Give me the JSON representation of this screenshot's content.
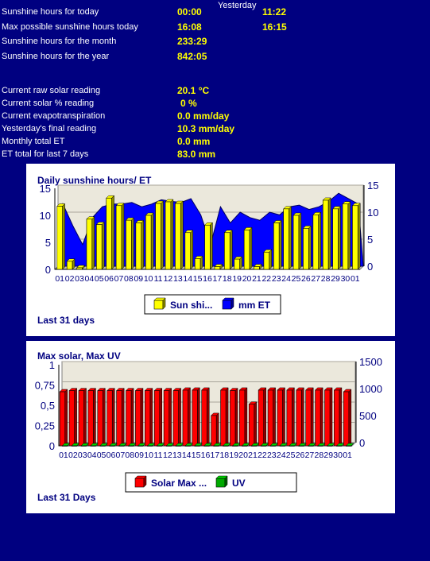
{
  "summary": {
    "yesterday_header": "Yesterday",
    "rows": [
      {
        "label": "Sunshine hours for today",
        "today": "00:00",
        "yesterday": "11:22"
      },
      {
        "label": "Max possible sunshine hours today",
        "today": "16:08",
        "yesterday": "16:15"
      },
      {
        "label": "Sunshine hours for the month",
        "today": "233:29"
      },
      {
        "label": "Sunshine hours for the year",
        "today": "842:05"
      }
    ]
  },
  "solar": {
    "rows": [
      {
        "label": "Current raw solar reading",
        "value": "20.1 °C"
      },
      {
        "label": "Current solar % reading",
        "value": "0 %"
      },
      {
        "label": "Current evapotranspiration",
        "value": "0.0 mm/day"
      },
      {
        "label": "Yesterday's final reading",
        "value": "10.3 mm/day"
      },
      {
        "label": "Monthly total ET",
        "value": "0.0 mm"
      },
      {
        "label": "ET total for last 7 days",
        "value": "83.0 mm"
      }
    ]
  },
  "chart_data": [
    {
      "type": "bar",
      "title": "Daily sunshine hours/ ET",
      "footer": "Last 31 days",
      "categories": [
        "01",
        "02",
        "03",
        "04",
        "05",
        "06",
        "07",
        "08",
        "09",
        "10",
        "11",
        "12",
        "13",
        "14",
        "15",
        "16",
        "17",
        "18",
        "19",
        "20",
        "21",
        "22",
        "23",
        "24",
        "25",
        "26",
        "27",
        "28",
        "29",
        "30",
        "01"
      ],
      "ylim_left": [
        0,
        15
      ],
      "ylim_right": [
        0,
        15
      ],
      "yticks_left": [
        "0",
        "5",
        "10",
        "15"
      ],
      "yticks_right": [
        "0",
        "5",
        "10",
        "15"
      ],
      "legend": [
        "Sun shi...",
        "mm ET"
      ],
      "series": [
        {
          "name": "Sun shi...",
          "type": "bar",
          "axis": "left",
          "color": "#ffff00",
          "values": [
            11.7,
            1.5,
            0.3,
            9.3,
            8.3,
            13.2,
            11.8,
            9.1,
            8.6,
            10.0,
            12.2,
            12.5,
            12.2,
            6.8,
            2.0,
            8.2,
            0.5,
            6.8,
            1.9,
            7.3,
            0.5,
            3.2,
            8.6,
            11.2,
            10.0,
            7.6,
            10.1,
            12.8,
            11.2,
            12.1,
            11.8
          ]
        },
        {
          "name": "mm ET",
          "type": "area",
          "axis": "right",
          "color": "#0000ff",
          "values": [
            11.5,
            7.5,
            4.0,
            9.0,
            11.0,
            11.5,
            11.5,
            11.8,
            11.0,
            11.5,
            12.3,
            12.0,
            11.8,
            12.5,
            9.5,
            4.0,
            11.0,
            8.0,
            10.0,
            9.0,
            8.5,
            10.0,
            9.5,
            11.0,
            11.3,
            10.5,
            11.0,
            12.0,
            13.5,
            12.5,
            11.5
          ]
        }
      ]
    },
    {
      "type": "bar",
      "title": "Max solar, Max UV",
      "footer": "Last 31 Days",
      "categories": [
        "01",
        "02",
        "03",
        "04",
        "05",
        "06",
        "07",
        "08",
        "09",
        "10",
        "11",
        "12",
        "13",
        "14",
        "15",
        "16",
        "17",
        "18",
        "19",
        "20",
        "21",
        "22",
        "23",
        "24",
        "25",
        "26",
        "27",
        "28",
        "29",
        "30",
        "01"
      ],
      "ylim_left": [
        0,
        1
      ],
      "ylim_right": [
        0,
        1500
      ],
      "yticks_left": [
        "0",
        "0,25",
        "0,5",
        "0,75",
        "1"
      ],
      "yticks_right": [
        "0",
        "500",
        "1000",
        "1500"
      ],
      "legend": [
        "Solar Max ...",
        "UV"
      ],
      "series": [
        {
          "name": "Solar Max ...",
          "type": "bar",
          "axis": "right",
          "color": "#ff0000",
          "values": [
            1000,
            1020,
            1020,
            1020,
            1020,
            1020,
            1020,
            1020,
            1020,
            1020,
            1020,
            1020,
            1020,
            1030,
            1030,
            1030,
            560,
            1030,
            1020,
            1030,
            770,
            1030,
            1030,
            1030,
            1030,
            1030,
            1030,
            1030,
            1030,
            1030,
            1000
          ]
        },
        {
          "name": "UV",
          "type": "bar",
          "axis": "left",
          "color": "#00aa00",
          "values": [
            0,
            0,
            0,
            0,
            0,
            0,
            0,
            0,
            0,
            0,
            0,
            0,
            0,
            0,
            0,
            0,
            0,
            0,
            0,
            0,
            0,
            0,
            0,
            0,
            0,
            0,
            0,
            0,
            0,
            0,
            0
          ]
        }
      ]
    }
  ]
}
